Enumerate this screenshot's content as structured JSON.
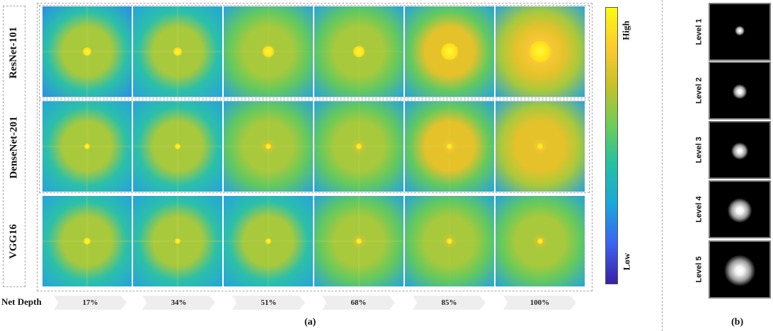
{
  "panel_a": {
    "rows": [
      {
        "label": "ResNet-101",
        "intensity": [
          0.62,
          0.64,
          0.68,
          0.72,
          0.9,
          1.0
        ],
        "spot": [
          6,
          6,
          8,
          8,
          12,
          15
        ],
        "cross": [
          0.7,
          0.7,
          0.3,
          0.3,
          0.0,
          0.0
        ]
      },
      {
        "label": "DenseNet-201",
        "intensity": [
          0.6,
          0.63,
          0.68,
          0.72,
          0.84,
          0.92
        ],
        "spot": [
          4,
          4,
          4,
          4,
          4,
          4
        ],
        "cross": [
          0.7,
          0.6,
          0.5,
          0.5,
          0.4,
          0.0
        ]
      },
      {
        "label": "VGG16",
        "intensity": [
          0.6,
          0.62,
          0.64,
          0.66,
          0.72,
          0.74
        ],
        "spot": [
          5,
          4,
          4,
          4,
          4,
          4
        ],
        "cross": [
          0.8,
          0.8,
          0.5,
          0.8,
          0.2,
          0.0
        ]
      }
    ],
    "depth_label": "Net Depth",
    "depths": [
      "17%",
      "34%",
      "51%",
      "68%",
      "85%",
      "100%"
    ],
    "caption": "(a)",
    "colorbar": {
      "high": "High",
      "low": "Low",
      "colors": [
        "#3a1fa8",
        "#3c62f0",
        "#1aa6dc",
        "#22c0a5",
        "#6ccd5a",
        "#c5c12a",
        "#fdca2e",
        "#f9fb0e"
      ]
    }
  },
  "panel_b": {
    "levels": [
      {
        "label": "Level 1",
        "radius": 0.12
      },
      {
        "label": "Level 2",
        "radius": 0.18
      },
      {
        "label": "Level 3",
        "radius": 0.21
      },
      {
        "label": "Level 4",
        "radius": 0.3
      },
      {
        "label": "Level 5",
        "radius": 0.38
      }
    ],
    "caption": "(b)"
  }
}
